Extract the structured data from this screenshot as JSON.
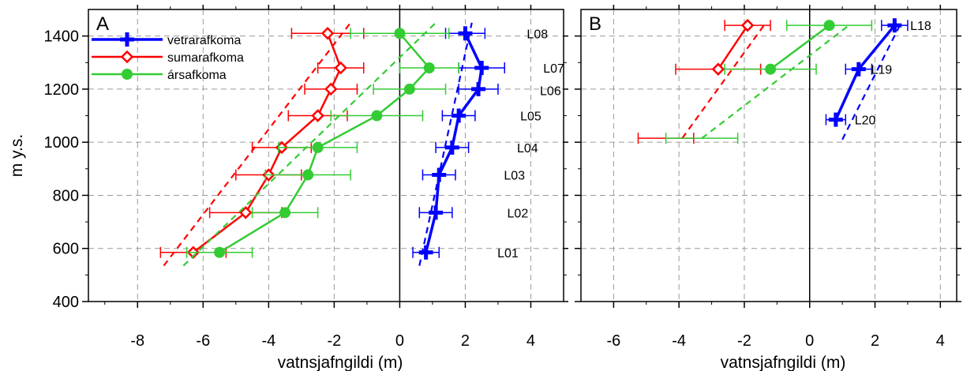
{
  "chart_data": [
    {
      "type": "line",
      "panel_label": "A",
      "xlabel": "vatnsjafngildi (m)",
      "ylabel": "m y.s.",
      "xlim": [
        -9.5,
        5
      ],
      "ylim": [
        400,
        1500
      ],
      "xticks": [
        -8,
        -6,
        -4,
        -2,
        0,
        2,
        4
      ],
      "yticks": [
        400,
        600,
        800,
        1000,
        1200,
        1400
      ],
      "grid": true,
      "legend_position": "top-left",
      "legend": [
        "vetrarafkoma",
        "sumarafkoma",
        "ársafkoma"
      ],
      "site_labels": [
        {
          "text": "L08",
          "x": 4.2,
          "y": 1410
        },
        {
          "text": "L07",
          "x": 4.7,
          "y": 1280
        },
        {
          "text": "L06",
          "x": 4.6,
          "y": 1195
        },
        {
          "text": "L05",
          "x": 4.0,
          "y": 1100
        },
        {
          "text": "L04",
          "x": 3.9,
          "y": 980
        },
        {
          "text": "L03",
          "x": 3.5,
          "y": 877
        },
        {
          "text": "L02",
          "x": 3.6,
          "y": 735
        },
        {
          "text": "L01",
          "x": 3.3,
          "y": 585
        }
      ],
      "series": [
        {
          "name": "vetrarafkoma",
          "color": "#0000ff",
          "marker": "plus",
          "y": [
            585,
            735,
            877,
            980,
            1100,
            1200,
            1280,
            1410
          ],
          "x": [
            0.8,
            1.1,
            1.2,
            1.6,
            1.8,
            2.4,
            2.5,
            2.0
          ],
          "err": [
            0.4,
            0.5,
            0.5,
            0.5,
            0.5,
            0.6,
            0.7,
            0.6
          ],
          "fit": [
            [
              0.6,
              535
            ],
            [
              2.2,
              1450
            ]
          ]
        },
        {
          "name": "sumarafkoma",
          "color": "#ff0000",
          "marker": "diamond",
          "y": [
            585,
            735,
            877,
            980,
            1100,
            1200,
            1280,
            1410
          ],
          "x": [
            -6.3,
            -4.7,
            -4.0,
            -3.6,
            -2.5,
            -2.1,
            -1.8,
            -2.2
          ],
          "err": [
            1.0,
            1.1,
            1.0,
            0.9,
            0.9,
            0.8,
            0.7,
            1.1
          ],
          "fit": [
            [
              -7.2,
              535
            ],
            [
              -1.5,
              1450
            ]
          ]
        },
        {
          "name": "ársafkoma",
          "color": "#33cc33",
          "marker": "circle",
          "y": [
            585,
            735,
            877,
            980,
            1100,
            1200,
            1280,
            1410
          ],
          "x": [
            -5.5,
            -3.5,
            -2.8,
            -2.5,
            -0.7,
            0.3,
            0.9,
            0.0
          ],
          "err": [
            1.0,
            1.0,
            1.3,
            1.2,
            1.4,
            1.1,
            0.9,
            1.5
          ],
          "fit": [
            [
              -6.6,
              535
            ],
            [
              1.1,
              1450
            ]
          ]
        }
      ]
    },
    {
      "type": "line",
      "panel_label": "B",
      "xlabel": "vatnsjafngildi (m)",
      "ylabel": "",
      "xlim": [
        -7,
        4.5
      ],
      "ylim": [
        400,
        1500
      ],
      "xticks": [
        -6,
        -4,
        -2,
        0,
        2,
        4
      ],
      "yticks": [
        400,
        600,
        800,
        1000,
        1200,
        1400
      ],
      "grid": true,
      "site_labels": [
        {
          "text": "L18",
          "x": 3.4,
          "y": 1440
        },
        {
          "text": "L19",
          "x": 2.2,
          "y": 1275
        },
        {
          "text": "L20",
          "x": 1.7,
          "y": 1085
        }
      ],
      "series": [
        {
          "name": "vetrarafkoma",
          "color": "#0000ff",
          "marker": "plus",
          "y": [
            1085,
            1275,
            1440
          ],
          "x": [
            0.8,
            1.5,
            2.6
          ],
          "err": [
            0.3,
            0.4,
            0.4
          ],
          "fit": [
            [
              1.0,
              1010
            ],
            [
              2.8,
              1450
            ]
          ]
        },
        {
          "name": "sumarafkoma",
          "color": "#ff0000",
          "marker": "diamond",
          "y": [
            1275,
            1440
          ],
          "x": [
            -2.8,
            -1.9
          ],
          "err": [
            1.3,
            0.7
          ],
          "extra_errorbars": [
            {
              "x": -4.4,
              "y": 1015,
              "err": 0.85
            }
          ],
          "fit": [
            [
              -3.9,
              1015
            ],
            [
              -1.4,
              1440
            ]
          ]
        },
        {
          "name": "ársafkoma",
          "color": "#33cc33",
          "marker": "circle",
          "y": [
            1275,
            1440
          ],
          "x": [
            -1.2,
            0.6
          ],
          "err": [
            1.4,
            1.3
          ],
          "extra_errorbars": [
            {
              "x": -3.3,
              "y": 1015,
              "err": 1.1
            }
          ],
          "fit": [
            [
              -3.3,
              1015
            ],
            [
              1.2,
              1440
            ]
          ]
        }
      ]
    }
  ]
}
